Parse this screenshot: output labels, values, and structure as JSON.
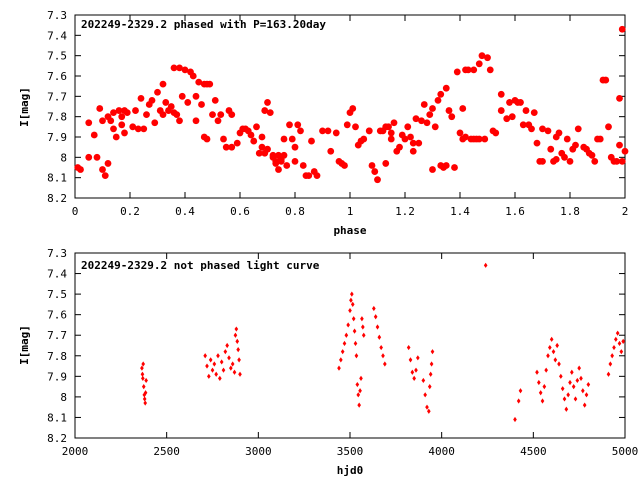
{
  "chart_data": [
    {
      "type": "scatter",
      "title": "202249-2329.2 phased with P=163.20day",
      "xlabel": "phase",
      "ylabel": "I[mag]",
      "xlim": [
        0,
        2
      ],
      "ylim": [
        8.2,
        7.3
      ],
      "y_inverted": true,
      "grid": false,
      "marker_color": "#ff0000",
      "marker": "filled-circle-large",
      "x_ticks": [
        "0",
        "0.2",
        "0.4",
        "0.6",
        "0.8",
        "1",
        "1.2",
        "1.4",
        "1.6",
        "1.8",
        "2"
      ],
      "x_tick_values": [
        0,
        0.2,
        0.4,
        0.6,
        0.8,
        1.0,
        1.2,
        1.4,
        1.6,
        1.8,
        2.0
      ],
      "y_ticks": [
        "7.3",
        "7.4",
        "7.5",
        "7.6",
        "7.7",
        "7.8",
        "7.9",
        "8",
        "8.1",
        "8.2"
      ],
      "y_tick_values": [
        7.3,
        7.4,
        7.5,
        7.6,
        7.7,
        7.8,
        7.9,
        8.0,
        8.1,
        8.2
      ],
      "points": [
        [
          0.01,
          8.05
        ],
        [
          0.02,
          8.06
        ],
        [
          0.05,
          8.0
        ],
        [
          0.05,
          7.83
        ],
        [
          0.07,
          7.89
        ],
        [
          0.08,
          8.0
        ],
        [
          0.09,
          7.76
        ],
        [
          0.1,
          7.82
        ],
        [
          0.1,
          8.06
        ],
        [
          0.11,
          8.09
        ],
        [
          0.12,
          8.03
        ],
        [
          0.12,
          7.8
        ],
        [
          0.13,
          7.82
        ],
        [
          0.14,
          7.78
        ],
        [
          0.14,
          7.86
        ],
        [
          0.15,
          7.9
        ],
        [
          0.16,
          7.77
        ],
        [
          0.17,
          7.84
        ],
        [
          0.17,
          7.8
        ],
        [
          0.18,
          7.77
        ],
        [
          0.18,
          7.88
        ],
        [
          0.19,
          7.78
        ],
        [
          0.21,
          7.85
        ],
        [
          0.22,
          7.77
        ],
        [
          0.23,
          7.86
        ],
        [
          0.24,
          7.71
        ],
        [
          0.25,
          7.86
        ],
        [
          0.26,
          7.79
        ],
        [
          0.27,
          7.74
        ],
        [
          0.28,
          7.72
        ],
        [
          0.29,
          7.83
        ],
        [
          0.3,
          7.68
        ],
        [
          0.31,
          7.77
        ],
        [
          0.32,
          7.79
        ],
        [
          0.32,
          7.64
        ],
        [
          0.33,
          7.73
        ],
        [
          0.34,
          7.77
        ],
        [
          0.35,
          7.75
        ],
        [
          0.36,
          7.56
        ],
        [
          0.36,
          7.78
        ],
        [
          0.37,
          7.79
        ],
        [
          0.38,
          7.82
        ],
        [
          0.38,
          7.56
        ],
        [
          0.39,
          7.7
        ],
        [
          0.4,
          7.57
        ],
        [
          0.41,
          7.73
        ],
        [
          0.42,
          7.58
        ],
        [
          0.43,
          7.6
        ],
        [
          0.44,
          7.82
        ],
        [
          0.44,
          7.7
        ],
        [
          0.45,
          7.63
        ],
        [
          0.46,
          7.74
        ],
        [
          0.47,
          7.64
        ],
        [
          0.47,
          7.9
        ],
        [
          0.48,
          7.64
        ],
        [
          0.48,
          7.91
        ],
        [
          0.49,
          7.64
        ],
        [
          0.5,
          7.79
        ],
        [
          0.51,
          7.72
        ],
        [
          0.52,
          7.82
        ],
        [
          0.53,
          7.79
        ],
        [
          0.54,
          7.91
        ],
        [
          0.55,
          7.95
        ],
        [
          0.56,
          7.77
        ],
        [
          0.57,
          7.79
        ],
        [
          0.57,
          7.95
        ],
        [
          0.59,
          7.93
        ],
        [
          0.6,
          7.88
        ],
        [
          0.61,
          7.86
        ],
        [
          0.62,
          7.86
        ],
        [
          0.63,
          7.87
        ],
        [
          0.64,
          7.89
        ],
        [
          0.65,
          7.92
        ],
        [
          0.66,
          7.85
        ],
        [
          0.67,
          7.98
        ],
        [
          0.68,
          7.95
        ],
        [
          0.68,
          7.9
        ],
        [
          0.69,
          7.98
        ],
        [
          0.69,
          7.77
        ],
        [
          0.7,
          7.73
        ],
        [
          0.7,
          7.96
        ],
        [
          0.71,
          7.78
        ],
        [
          0.72,
          8.0
        ],
        [
          0.72,
          7.99
        ],
        [
          0.73,
          8.02
        ],
        [
          0.73,
          8.03
        ],
        [
          0.74,
          7.99
        ],
        [
          0.74,
          8.06
        ],
        [
          0.75,
          8.02
        ],
        [
          0.75,
          8.01
        ],
        [
          0.76,
          7.91
        ],
        [
          0.76,
          7.99
        ],
        [
          0.77,
          8.04
        ],
        [
          0.78,
          7.84
        ],
        [
          0.79,
          7.91
        ],
        [
          0.8,
          7.95
        ],
        [
          0.8,
          8.02
        ],
        [
          0.81,
          7.84
        ],
        [
          0.82,
          7.87
        ],
        [
          0.83,
          8.04
        ],
        [
          0.84,
          8.09
        ],
        [
          0.85,
          8.09
        ],
        [
          0.86,
          7.92
        ],
        [
          0.87,
          8.07
        ],
        [
          0.88,
          8.09
        ],
        [
          0.9,
          7.87
        ],
        [
          0.92,
          7.87
        ],
        [
          0.93,
          7.97
        ],
        [
          0.95,
          7.88
        ],
        [
          0.96,
          8.02
        ],
        [
          0.97,
          8.03
        ],
        [
          0.98,
          8.04
        ],
        [
          0.99,
          7.84
        ],
        [
          1.0,
          7.78
        ],
        [
          1.01,
          7.76
        ],
        [
          1.02,
          7.85
        ],
        [
          1.03,
          7.94
        ],
        [
          1.04,
          7.92
        ],
        [
          1.05,
          7.91
        ],
        [
          1.07,
          7.87
        ],
        [
          1.07,
          7.87
        ],
        [
          1.08,
          8.04
        ],
        [
          1.09,
          8.07
        ],
        [
          1.1,
          8.11
        ],
        [
          1.11,
          7.87
        ],
        [
          1.12,
          7.87
        ],
        [
          1.13,
          7.85
        ],
        [
          1.13,
          8.03
        ],
        [
          1.14,
          7.85
        ],
        [
          1.15,
          7.88
        ],
        [
          1.15,
          7.91
        ],
        [
          1.16,
          7.83
        ],
        [
          1.17,
          7.97
        ],
        [
          1.18,
          7.95
        ],
        [
          1.19,
          7.89
        ],
        [
          1.2,
          7.91
        ],
        [
          1.21,
          7.85
        ],
        [
          1.22,
          7.9
        ],
        [
          1.23,
          7.93
        ],
        [
          1.23,
          7.97
        ],
        [
          1.24,
          7.81
        ],
        [
          1.25,
          7.93
        ],
        [
          1.26,
          7.82
        ],
        [
          1.27,
          7.74
        ],
        [
          1.28,
          7.83
        ],
        [
          1.29,
          7.79
        ],
        [
          1.3,
          7.76
        ],
        [
          1.3,
          8.06
        ],
        [
          1.31,
          7.85
        ],
        [
          1.32,
          7.72
        ],
        [
          1.33,
          8.04
        ],
        [
          1.33,
          7.69
        ],
        [
          1.34,
          8.05
        ],
        [
          1.35,
          7.66
        ],
        [
          1.35,
          8.04
        ],
        [
          1.36,
          7.77
        ],
        [
          1.37,
          7.8
        ],
        [
          1.38,
          8.05
        ],
        [
          1.39,
          7.58
        ],
        [
          1.4,
          7.88
        ],
        [
          1.41,
          7.91
        ],
        [
          1.41,
          7.76
        ],
        [
          1.42,
          7.57
        ],
        [
          1.42,
          7.9
        ],
        [
          1.43,
          7.57
        ],
        [
          1.44,
          7.91
        ],
        [
          1.45,
          7.91
        ],
        [
          1.45,
          7.57
        ],
        [
          1.46,
          7.91
        ],
        [
          1.47,
          7.54
        ],
        [
          1.47,
          7.91
        ],
        [
          1.48,
          7.5
        ],
        [
          1.49,
          7.91
        ],
        [
          1.5,
          7.51
        ],
        [
          1.51,
          7.57
        ],
        [
          1.52,
          7.87
        ],
        [
          1.53,
          7.88
        ],
        [
          1.55,
          7.77
        ],
        [
          1.55,
          7.69
        ],
        [
          1.57,
          7.81
        ],
        [
          1.58,
          7.73
        ],
        [
          1.59,
          7.8
        ],
        [
          1.6,
          7.72
        ],
        [
          1.61,
          7.73
        ],
        [
          1.62,
          7.73
        ],
        [
          1.63,
          7.84
        ],
        [
          1.64,
          7.77
        ],
        [
          1.65,
          7.84
        ],
        [
          1.66,
          7.86
        ],
        [
          1.67,
          7.78
        ],
        [
          1.68,
          7.93
        ],
        [
          1.69,
          8.02
        ],
        [
          1.7,
          8.02
        ],
        [
          1.7,
          7.86
        ],
        [
          1.72,
          7.87
        ],
        [
          1.73,
          7.96
        ],
        [
          1.74,
          8.02
        ],
        [
          1.75,
          7.9
        ],
        [
          1.75,
          8.01
        ],
        [
          1.76,
          7.88
        ],
        [
          1.77,
          7.98
        ],
        [
          1.78,
          8.0
        ],
        [
          1.79,
          7.91
        ],
        [
          1.8,
          8.02
        ],
        [
          1.81,
          7.96
        ],
        [
          1.82,
          7.94
        ],
        [
          1.83,
          7.86
        ],
        [
          1.85,
          7.95
        ],
        [
          1.86,
          7.96
        ],
        [
          1.87,
          7.98
        ],
        [
          1.88,
          7.99
        ],
        [
          1.89,
          8.02
        ],
        [
          1.9,
          7.91
        ],
        [
          1.91,
          7.91
        ],
        [
          1.92,
          7.62
        ],
        [
          1.93,
          7.62
        ],
        [
          1.94,
          7.85
        ],
        [
          1.95,
          8.0
        ],
        [
          1.96,
          8.02
        ],
        [
          1.97,
          8.02
        ],
        [
          1.98,
          7.94
        ],
        [
          1.98,
          7.71
        ],
        [
          1.99,
          7.37
        ],
        [
          2.0,
          7.97
        ],
        [
          1.99,
          8.02
        ]
      ]
    },
    {
      "type": "scatter",
      "title": "202249-2329.2 not phased light curve",
      "xlabel": "hjd0",
      "ylabel": "I[mag]",
      "xlim": [
        2000,
        5000
      ],
      "ylim": [
        8.2,
        7.3
      ],
      "y_inverted": true,
      "grid": false,
      "marker_color": "#ff0000",
      "marker": "filled-diamond-small",
      "x_ticks": [
        "2000",
        "2500",
        "3000",
        "3500",
        "4000",
        "4500",
        "5000"
      ],
      "x_tick_values": [
        2000,
        2500,
        3000,
        3500,
        4000,
        4500,
        5000
      ],
      "y_ticks": [
        "7.3",
        "7.4",
        "7.5",
        "7.6",
        "7.7",
        "7.8",
        "7.9",
        "8",
        "8.1",
        "8.2"
      ],
      "y_tick_values": [
        7.3,
        7.4,
        7.5,
        7.6,
        7.7,
        7.8,
        7.9,
        8.0,
        8.1,
        8.2
      ],
      "points": [
        [
          2365,
          7.86
        ],
        [
          2368,
          7.89
        ],
        [
          2370,
          7.91
        ],
        [
          2372,
          7.84
        ],
        [
          2375,
          7.95
        ],
        [
          2378,
          7.99
        ],
        [
          2380,
          8.01
        ],
        [
          2383,
          8.03
        ],
        [
          2385,
          7.98
        ],
        [
          2388,
          7.92
        ],
        [
          2710,
          7.8
        ],
        [
          2720,
          7.85
        ],
        [
          2730,
          7.9
        ],
        [
          2740,
          7.82
        ],
        [
          2750,
          7.87
        ],
        [
          2760,
          7.84
        ],
        [
          2770,
          7.89
        ],
        [
          2780,
          7.8
        ],
        [
          2790,
          7.91
        ],
        [
          2800,
          7.83
        ],
        [
          2810,
          7.87
        ],
        [
          2820,
          7.78
        ],
        [
          2830,
          7.75
        ],
        [
          2840,
          7.81
        ],
        [
          2850,
          7.86
        ],
        [
          2860,
          7.84
        ],
        [
          2870,
          7.88
        ],
        [
          2875,
          7.7
        ],
        [
          2880,
          7.67
        ],
        [
          2885,
          7.73
        ],
        [
          2890,
          7.77
        ],
        [
          2895,
          7.82
        ],
        [
          2900,
          7.89
        ],
        [
          3440,
          7.86
        ],
        [
          3450,
          7.82
        ],
        [
          3460,
          7.78
        ],
        [
          3470,
          7.74
        ],
        [
          3480,
          7.7
        ],
        [
          3490,
          7.65
        ],
        [
          3500,
          7.58
        ],
        [
          3505,
          7.53
        ],
        [
          3510,
          7.5
        ],
        [
          3515,
          7.55
        ],
        [
          3520,
          7.62
        ],
        [
          3525,
          7.68
        ],
        [
          3530,
          7.74
        ],
        [
          3535,
          7.8
        ],
        [
          3540,
          7.94
        ],
        [
          3545,
          7.99
        ],
        [
          3550,
          8.04
        ],
        [
          3555,
          7.97
        ],
        [
          3560,
          7.91
        ],
        [
          3565,
          7.62
        ],
        [
          3570,
          7.66
        ],
        [
          3575,
          7.7
        ],
        [
          3630,
          7.57
        ],
        [
          3640,
          7.61
        ],
        [
          3650,
          7.66
        ],
        [
          3660,
          7.71
        ],
        [
          3670,
          7.76
        ],
        [
          3680,
          7.8
        ],
        [
          3690,
          7.84
        ],
        [
          3820,
          7.76
        ],
        [
          3830,
          7.82
        ],
        [
          3840,
          7.88
        ],
        [
          3850,
          7.91
        ],
        [
          3860,
          7.87
        ],
        [
          3870,
          7.81
        ],
        [
          3900,
          7.92
        ],
        [
          3910,
          7.99
        ],
        [
          3920,
          8.05
        ],
        [
          3930,
          8.07
        ],
        [
          3935,
          7.95
        ],
        [
          3940,
          7.89
        ],
        [
          3945,
          7.84
        ],
        [
          3950,
          7.78
        ],
        [
          4240,
          7.36
        ],
        [
          4400,
          8.11
        ],
        [
          4420,
          8.02
        ],
        [
          4430,
          7.97
        ],
        [
          4520,
          7.88
        ],
        [
          4530,
          7.93
        ],
        [
          4540,
          7.98
        ],
        [
          4550,
          8.02
        ],
        [
          4560,
          7.95
        ],
        [
          4570,
          7.87
        ],
        [
          4580,
          7.8
        ],
        [
          4590,
          7.76
        ],
        [
          4600,
          7.72
        ],
        [
          4610,
          7.78
        ],
        [
          4620,
          7.82
        ],
        [
          4630,
          7.75
        ],
        [
          4640,
          7.84
        ],
        [
          4650,
          7.9
        ],
        [
          4660,
          7.96
        ],
        [
          4670,
          8.01
        ],
        [
          4680,
          8.06
        ],
        [
          4690,
          7.99
        ],
        [
          4700,
          7.93
        ],
        [
          4710,
          7.88
        ],
        [
          4720,
          7.95
        ],
        [
          4730,
          8.01
        ],
        [
          4740,
          7.92
        ],
        [
          4750,
          7.86
        ],
        [
          4760,
          7.91
        ],
        [
          4770,
          7.97
        ],
        [
          4780,
          8.04
        ],
        [
          4790,
          7.99
        ],
        [
          4800,
          7.94
        ],
        [
          4910,
          7.89
        ],
        [
          4920,
          7.84
        ],
        [
          4930,
          7.8
        ],
        [
          4940,
          7.76
        ],
        [
          4950,
          7.72
        ],
        [
          4960,
          7.69
        ],
        [
          4970,
          7.74
        ],
        [
          4980,
          7.78
        ],
        [
          4990,
          7.73
        ]
      ]
    }
  ]
}
